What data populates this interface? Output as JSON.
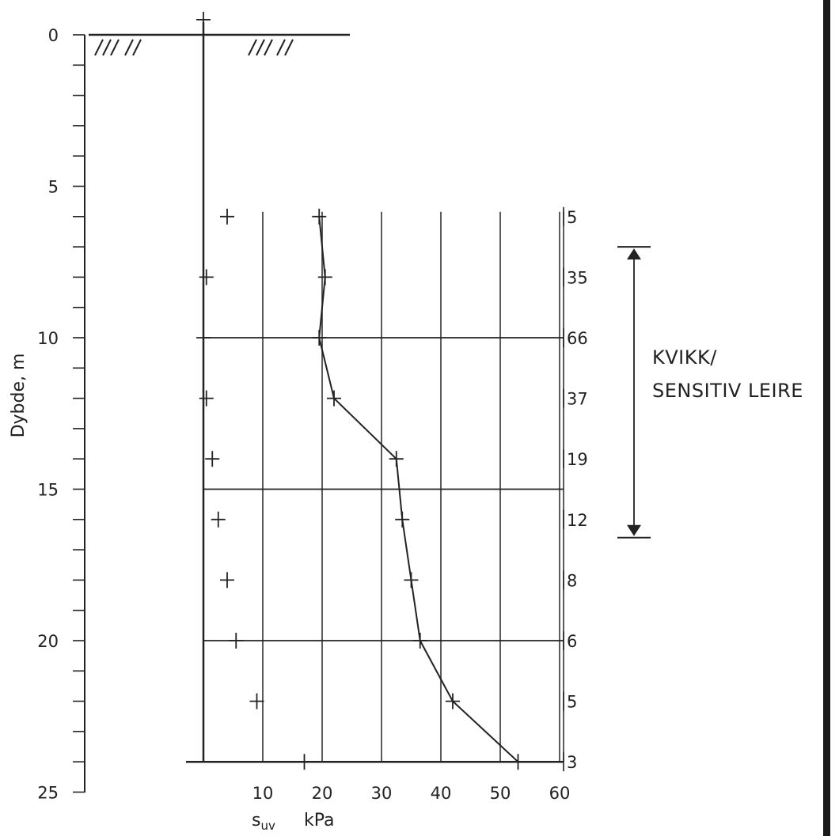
{
  "chart_data": {
    "type": "line",
    "ylabel": "Dybde, m",
    "xlabel_symbol": "s",
    "xlabel_subscript": "uv",
    "xlabel_unit": "kPa",
    "y_axis": {
      "range": [
        0,
        25
      ],
      "major_ticks": [
        0,
        5,
        10,
        15,
        20,
        25
      ],
      "minor_step": 1,
      "inverted": true
    },
    "x_axis": {
      "range": [
        0,
        60
      ],
      "tick_labels": [
        10,
        20,
        30,
        40,
        50,
        60
      ],
      "grid_values": [
        10,
        20,
        30,
        40,
        50,
        60
      ]
    },
    "horizontal_grid_depths": [
      10,
      15,
      20,
      24
    ],
    "grid_top_depth": 6,
    "series": [
      {
        "line": true,
        "points": [
          {
            "x": 19.5,
            "y": 6
          },
          {
            "x": 20.5,
            "y": 8
          },
          {
            "x": 19.5,
            "y": 10
          },
          {
            "x": 22,
            "y": 12
          },
          {
            "x": 32.5,
            "y": 14
          },
          {
            "x": 33.5,
            "y": 16
          },
          {
            "x": 35,
            "y": 18
          },
          {
            "x": 36.5,
            "y": 20
          },
          {
            "x": 42,
            "y": 22
          },
          {
            "x": 53,
            "y": 24
          }
        ]
      },
      {
        "line": false,
        "points": [
          {
            "x": 4,
            "y": 6
          },
          {
            "x": 0.5,
            "y": 8
          },
          {
            "x": 0,
            "y": 10
          },
          {
            "x": 0.5,
            "y": 12
          },
          {
            "x": 1.5,
            "y": 14
          },
          {
            "x": 2.5,
            "y": 16
          },
          {
            "x": 4,
            "y": 18
          },
          {
            "x": 5.5,
            "y": 20
          },
          {
            "x": 9,
            "y": 22
          },
          {
            "x": 17,
            "y": 24
          }
        ]
      }
    ],
    "top_marker": {
      "x": 0,
      "y": -0.5
    },
    "right_values": [
      {
        "y": 6,
        "label": "5"
      },
      {
        "y": 8,
        "label": "35"
      },
      {
        "y": 10,
        "label": "66"
      },
      {
        "y": 12,
        "label": "37"
      },
      {
        "y": 14,
        "label": "19"
      },
      {
        "y": 16,
        "label": "12"
      },
      {
        "y": 18,
        "label": "8"
      },
      {
        "y": 20,
        "label": "6"
      },
      {
        "y": 22,
        "label": "5"
      },
      {
        "y": 24,
        "label": "3"
      }
    ],
    "zone_annotation": {
      "line1": "KVIKK/",
      "line2": "SENSITIV LEIRE",
      "from_depth": 7,
      "to_depth": 16.6
    }
  }
}
